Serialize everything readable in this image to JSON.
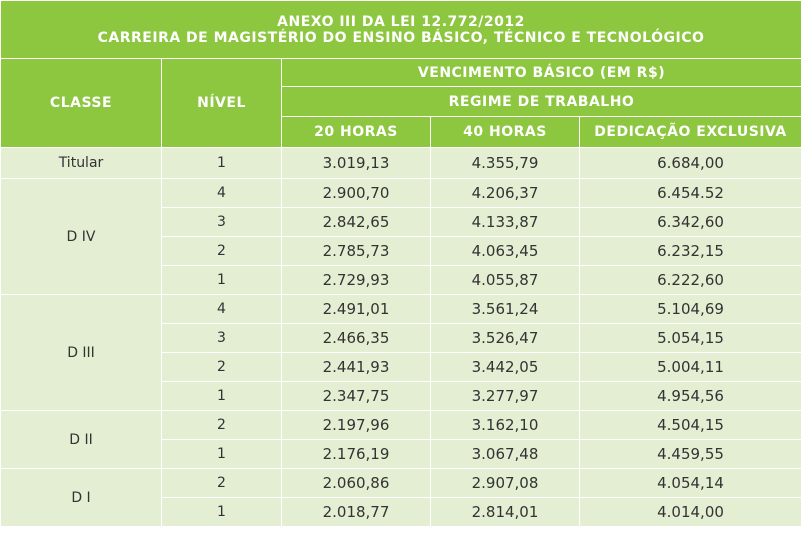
{
  "table": {
    "title_line1": "ANEXO III DA LEI 12.772/2012",
    "title_line2": "CARREIRA DE MAGISTÉRIO DO ENSINO BÁSICO, TÉCNICO E TECNOLÓGICO",
    "headers": {
      "classe": "CLASSE",
      "nivel": "NÍVEL",
      "vencimento": "VENCIMENTO BÁSICO (EM R$)",
      "regime": "REGIME DE TRABALHO",
      "h20": "20 HORAS",
      "h40": "40 HORAS",
      "de": "DEDICAÇÃO EXCLUSIVA"
    },
    "header_color": "#8dc63f",
    "row_color": "#e4eed2",
    "groups": [
      {
        "classe": "Titular",
        "rows": [
          {
            "nivel": "1",
            "h20": "3.019,13",
            "h40": "4.355,79",
            "de": "6.684,00"
          }
        ]
      },
      {
        "classe": "D IV",
        "rows": [
          {
            "nivel": "4",
            "h20": "2.900,70",
            "h40": "4.206,37",
            "de": "6.454.52"
          },
          {
            "nivel": "3",
            "h20": "2.842,65",
            "h40": "4.133,87",
            "de": "6.342,60"
          },
          {
            "nivel": "2",
            "h20": "2.785,73",
            "h40": "4.063,45",
            "de": "6.232,15"
          },
          {
            "nivel": "1",
            "h20": "2.729,93",
            "h40": "4.055,87",
            "de": "6.222,60"
          }
        ]
      },
      {
        "classe": "D III",
        "rows": [
          {
            "nivel": "4",
            "h20": "2.491,01",
            "h40": "3.561,24",
            "de": "5.104,69"
          },
          {
            "nivel": "3",
            "h20": "2.466,35",
            "h40": "3.526,47",
            "de": "5.054,15"
          },
          {
            "nivel": "2",
            "h20": "2.441,93",
            "h40": "3.442,05",
            "de": "5.004,11"
          },
          {
            "nivel": "1",
            "h20": "2.347,75",
            "h40": "3.277,97",
            "de": "4.954,56"
          }
        ]
      },
      {
        "classe": "D II",
        "rows": [
          {
            "nivel": "2",
            "h20": "2.197,96",
            "h40": "3.162,10",
            "de": "4.504,15"
          },
          {
            "nivel": "1",
            "h20": "2.176,19",
            "h40": "3.067,48",
            "de": "4.459,55"
          }
        ]
      },
      {
        "classe": "D I",
        "rows": [
          {
            "nivel": "2",
            "h20": "2.060,86",
            "h40": "2.907,08",
            "de": "4.054,14"
          },
          {
            "nivel": "1",
            "h20": "2.018,77",
            "h40": "2.814,01",
            "de": "4.014,00"
          }
        ]
      }
    ]
  }
}
